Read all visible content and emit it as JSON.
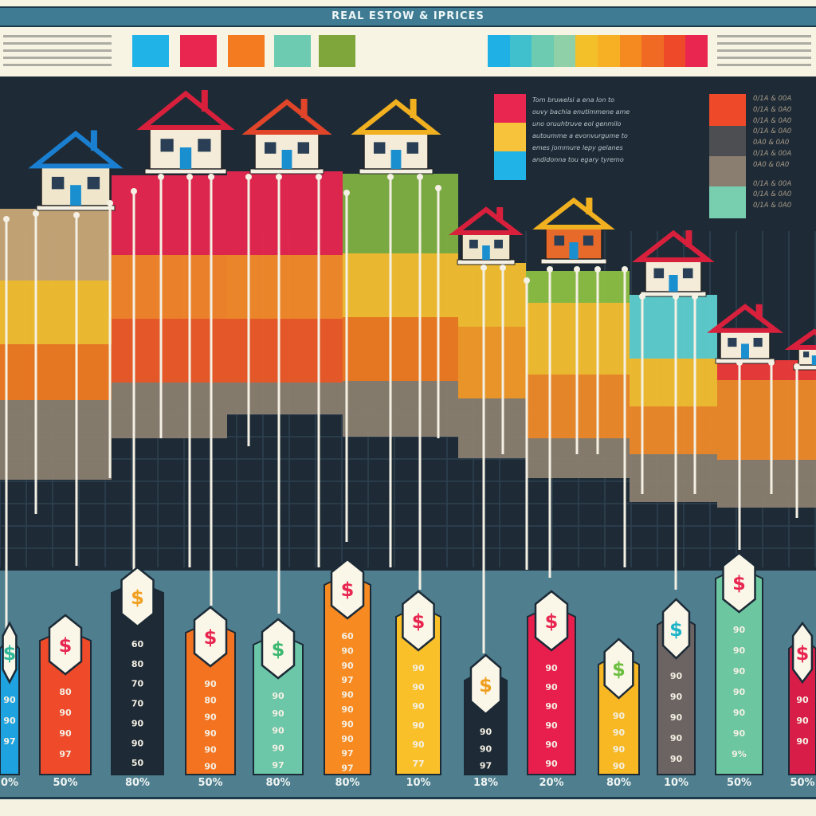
{
  "header": {
    "title": "REAL ESTOW & IPRICES",
    "legend_swatches": [
      "#1fb3e8",
      "#e8264f",
      "#f47b20",
      "#6ccbb0",
      "#7fa63a"
    ],
    "gradient_strip": [
      "#1fb0e6",
      "#3fc0cc",
      "#6ccbb0",
      "#8fd0a8",
      "#f4c02a",
      "#f7b024",
      "#f48a20",
      "#f06a24",
      "#ee4a2a",
      "#e8264f"
    ]
  },
  "legend": {
    "blocks_left": [
      "#e8264f",
      "#f6c33a",
      "#1fb3e8"
    ],
    "text_lines": [
      "Tom bruwelsi a ena Ion to",
      "ouvy bachia enutimmene ame",
      "uno oruuhtruve eol genmilo",
      "autoumme a evonvurgume to",
      "emes jommure lepy gelanes",
      "andidonna tou egary tyremo"
    ],
    "blocks_right": [
      "#ee4a2a",
      "#4c4e52",
      "#8a7e70",
      "#78cfb0"
    ],
    "codes": [
      "0/1A & 00A",
      "0/1A & 0A0",
      "0/1A & 0A0",
      "0/1A & 0A0",
      "0A0 & 0A0",
      "0/1A & 00A",
      "0A0 & 0A0",
      "0/1A & 00A",
      "0/1A & 0A0",
      "0/1A & 0A0"
    ]
  },
  "chart_data": {
    "type": "bar",
    "title": "REAL ESTOW & IPRICES",
    "xlabel": "",
    "ylabel": "",
    "categories": [
      "0%",
      "50%",
      "80%",
      "50%",
      "80%",
      "80%",
      "10%",
      "18%",
      "20%",
      "80%",
      "10%",
      "50%",
      "50%"
    ],
    "bars": [
      {
        "label": "0%",
        "color": "#1fa3e0",
        "tag_color": "#2fb89a",
        "digits": [
          "90",
          "90",
          "97"
        ]
      },
      {
        "label": "50%",
        "color": "#ef4a2a",
        "tag_color": "#e8264f",
        "digits": [
          "80",
          "90",
          "90",
          "97"
        ]
      },
      {
        "label": "80%",
        "color": "#1e2a35",
        "tag_color": "#f0a020",
        "digits": [
          "60",
          "80",
          "70",
          "70",
          "90",
          "90",
          "50"
        ]
      },
      {
        "label": "50%",
        "color": "#f47320",
        "tag_color": "#e8264f",
        "digits": [
          "90",
          "80",
          "90",
          "90",
          "90",
          "90"
        ]
      },
      {
        "label": "80%",
        "color": "#6cc6a8",
        "tag_color": "#3cb870",
        "digits": [
          "90",
          "90",
          "90",
          "90",
          "97"
        ]
      },
      {
        "label": "80%",
        "color": "#f78a20",
        "tag_color": "#e8264f",
        "digits": [
          "60",
          "90",
          "90",
          "97",
          "90",
          "90",
          "90",
          "90",
          "97",
          "97"
        ]
      },
      {
        "label": "10%",
        "color": "#f9c02a",
        "tag_color": "#e8264f",
        "digits": [
          "90",
          "90",
          "90",
          "90",
          "90",
          "77"
        ]
      },
      {
        "label": "18%",
        "color": "#1e2a35",
        "tag_color": "#f0a020",
        "digits": [
          "90",
          "90",
          "97"
        ]
      },
      {
        "label": "20%",
        "color": "#e81e4d",
        "tag_color": "#e8264f",
        "digits": [
          "90",
          "90",
          "90",
          "90",
          "90",
          "90"
        ]
      },
      {
        "label": "80%",
        "color": "#f7b824",
        "tag_color": "#6cbf40",
        "digits": [
          "90",
          "90",
          "90",
          "90"
        ]
      },
      {
        "label": "10%",
        "color": "#6b6462",
        "tag_color": "#1fb3c8",
        "digits": [
          "90",
          "90",
          "90",
          "90",
          "90"
        ]
      },
      {
        "label": "50%",
        "color": "#6cc6a0",
        "tag_color": "#e8264f",
        "digits": [
          "90",
          "90",
          "90",
          "90",
          "90",
          "90",
          "9%"
        ]
      },
      {
        "label": "50%",
        "color": "#d81e48",
        "tag_color": "#e8264f",
        "digits": [
          "90",
          "90",
          "90"
        ]
      }
    ],
    "grid": true
  }
}
